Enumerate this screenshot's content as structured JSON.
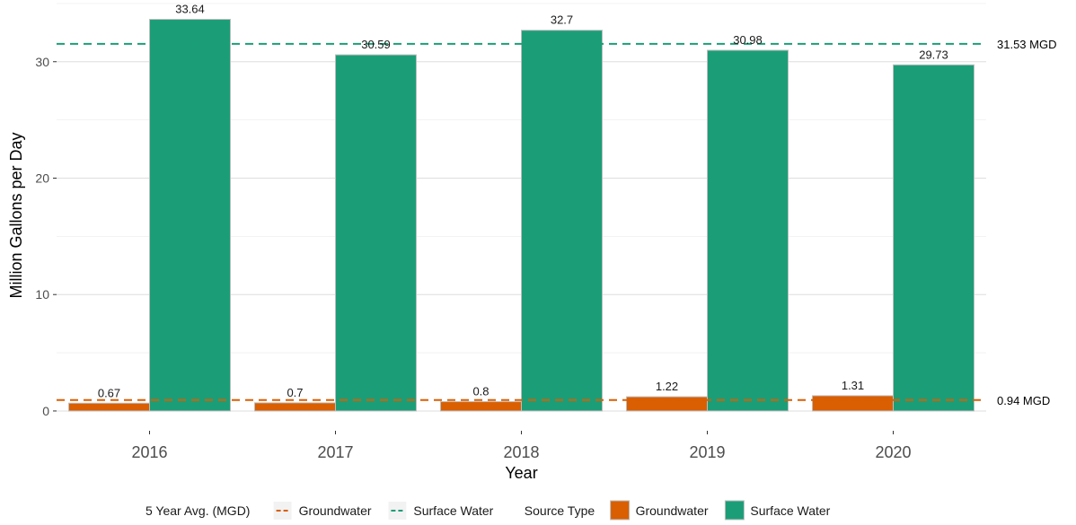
{
  "chart_data": {
    "type": "bar",
    "categories": [
      "2016",
      "2017",
      "2018",
      "2019",
      "2020"
    ],
    "series": [
      {
        "name": "Groundwater",
        "values": [
          0.67,
          0.7,
          0.8,
          1.22,
          1.31
        ],
        "color": "#D95F02",
        "labels": [
          "0.67",
          "0.7",
          "0.8",
          "1.22",
          "1.31"
        ]
      },
      {
        "name": "Surface Water",
        "values": [
          33.64,
          30.59,
          32.7,
          30.98,
          29.73
        ],
        "color": "#1B9E77",
        "labels": [
          "33.64",
          "30.59",
          "32.7",
          "30.98",
          "29.73"
        ]
      }
    ],
    "reference_lines": [
      {
        "name": "Groundwater",
        "value": 0.94,
        "label": "0.94  MGD",
        "color": "#D95F02",
        "style": "dashed"
      },
      {
        "name": "Surface Water",
        "value": 31.53,
        "label": "31.53  MGD",
        "color": "#1B9E77",
        "style": "dashed"
      }
    ],
    "title": "",
    "xlabel": "Year",
    "ylabel": "Million Gallons per Day",
    "yticks": [
      0,
      10,
      20,
      30
    ],
    "ylim": [
      -1.7,
      35.3
    ],
    "grid": true,
    "bar_outline_color": "#bdbdbd",
    "legend": {
      "position": "bottom",
      "groups": [
        {
          "title": "5 Year Avg. (MGD)",
          "kind": "line",
          "items": [
            {
              "label": "Groundwater",
              "color": "#D95F02"
            },
            {
              "label": "Surface Water",
              "color": "#1B9E77"
            }
          ]
        },
        {
          "title": "Source Type",
          "kind": "box",
          "items": [
            {
              "label": "Groundwater",
              "color": "#D95F02"
            },
            {
              "label": "Surface Water",
              "color": "#1B9E77"
            }
          ]
        }
      ]
    }
  }
}
